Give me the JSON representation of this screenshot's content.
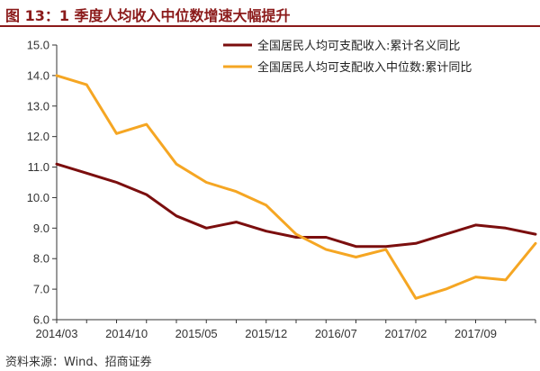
{
  "figure": {
    "title": "图 13：1 季度人均收入中位数增速大幅提升",
    "source": "资料来源：Wind、招商证券"
  },
  "chart_data": {
    "type": "line",
    "title": "图 13：1 季度人均收入中位数增速大幅提升",
    "xlabel": "",
    "ylabel": "",
    "ylim": [
      6.0,
      15.0
    ],
    "yticks": [
      "6.0",
      "7.0",
      "8.0",
      "9.0",
      "10.0",
      "11.0",
      "12.0",
      "13.0",
      "14.0",
      "15.0"
    ],
    "x": [
      "2014/03",
      "2014/06",
      "2014/09",
      "2014/12",
      "2015/03",
      "2015/06",
      "2015/09",
      "2015/12",
      "2016/03",
      "2016/06",
      "2016/09",
      "2016/12",
      "2017/03",
      "2017/06",
      "2017/09",
      "2017/12",
      "2018/03"
    ],
    "xtick_labels": [
      "2014/03",
      "2014/10",
      "2015/05",
      "2015/12",
      "2016/07",
      "2017/02",
      "2017/09"
    ],
    "xtick_values": [
      0,
      2.333,
      4.667,
      7.0,
      9.333,
      11.667,
      14.0
    ],
    "grid": false,
    "legend_position": "top-right",
    "series": [
      {
        "name": "全国居民人均可支配收入:累计名义同比",
        "color": "#7B0E0E",
        "values": [
          11.1,
          10.8,
          10.5,
          10.1,
          9.4,
          9.0,
          9.2,
          8.9,
          8.7,
          8.7,
          8.4,
          8.4,
          8.5,
          8.8,
          9.1,
          9.0,
          8.8
        ]
      },
      {
        "name": "全国居民人均可支配收入中位数:累计同比",
        "color": "#F5A623",
        "values": [
          14.0,
          13.7,
          12.1,
          12.4,
          11.1,
          10.5,
          10.2,
          9.75,
          8.8,
          8.3,
          8.05,
          8.3,
          6.7,
          7.0,
          7.4,
          7.3,
          8.5
        ]
      }
    ]
  }
}
